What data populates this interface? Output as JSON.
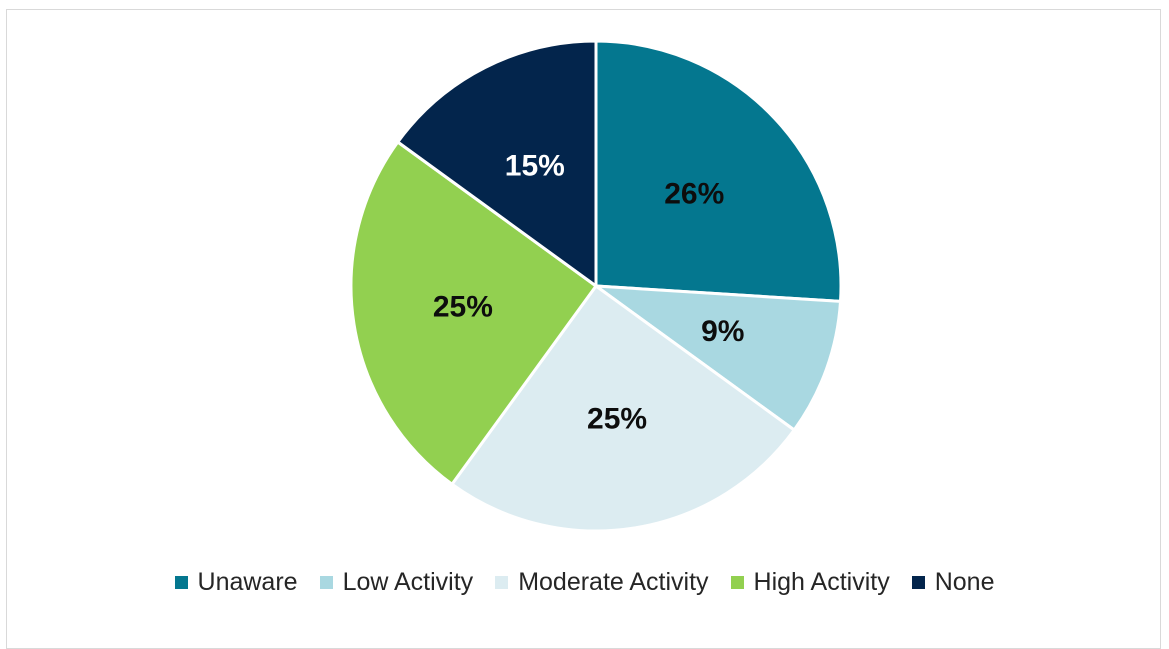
{
  "chart_data": {
    "type": "pie",
    "title": "",
    "slices": [
      {
        "label": "Unaware",
        "value": 26,
        "display": "26%",
        "color": "#04778f",
        "label_color": "#0d0d0d"
      },
      {
        "label": "Low Activity",
        "value": 9,
        "display": "9%",
        "color": "#a9d8e1",
        "label_color": "#0d0d0d"
      },
      {
        "label": "Moderate Activity",
        "value": 25,
        "display": "25%",
        "color": "#dcecf1",
        "label_color": "#0d0d0d"
      },
      {
        "label": "High Activity",
        "value": 25,
        "display": "25%",
        "color": "#92d050",
        "label_color": "#0d0d0d"
      },
      {
        "label": "None",
        "value": 15,
        "display": "15%",
        "color": "#03254c",
        "label_color": "#ffffff"
      }
    ],
    "start_angle": "12 o'clock",
    "direction": "clockwise",
    "legend_position": "bottom"
  }
}
